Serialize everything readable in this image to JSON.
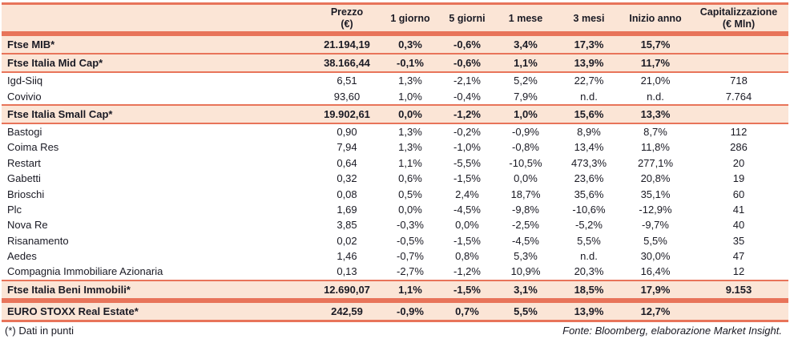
{
  "colors": {
    "accent_line": "#E8745A",
    "band_bg": "#FBE5D6",
    "text": "#1A1A24"
  },
  "table": {
    "headers": {
      "name": "",
      "prezzo_line1": "Prezzo",
      "prezzo_line2": "(€)",
      "d1": "1 giorno",
      "d5": "5 giorni",
      "m1": "1 mese",
      "m3": "3 mesi",
      "ytd": "Inizio anno",
      "cap_line1": "Capitalizzazione",
      "cap_line2": "(€ Mln)"
    },
    "rows": [
      {
        "name": "Ftse MIB*",
        "style": "index",
        "sep_after": "line",
        "cells": [
          "21.194,19",
          "0,3%",
          "-0,6%",
          "3,4%",
          "17,3%",
          "15,7%",
          ""
        ]
      },
      {
        "name": "Ftse Italia Mid Cap*",
        "style": "index",
        "sep_after": "line",
        "cells": [
          "38.166,44",
          "-0,1%",
          "-0,6%",
          "1,1%",
          "13,9%",
          "11,7%",
          ""
        ]
      },
      {
        "name": "Igd-Siiq",
        "style": "stock",
        "sep_after": "",
        "cells": [
          "6,51",
          "1,3%",
          "-2,1%",
          "5,2%",
          "22,7%",
          "21,0%",
          "718"
        ]
      },
      {
        "name": "Covivio",
        "style": "stock",
        "sep_after": "line",
        "cells": [
          "93,60",
          "1,0%",
          "-0,4%",
          "7,9%",
          "n.d.",
          "n.d.",
          "7.764"
        ]
      },
      {
        "name": "Ftse Italia Small Cap*",
        "style": "index",
        "sep_after": "line",
        "cells": [
          "19.902,61",
          "0,0%",
          "-1,2%",
          "1,0%",
          "15,6%",
          "13,3%",
          ""
        ]
      },
      {
        "name": "Bastogi",
        "style": "stock",
        "sep_after": "",
        "cells": [
          "0,90",
          "1,3%",
          "-0,2%",
          "-0,9%",
          "8,9%",
          "8,7%",
          "112"
        ]
      },
      {
        "name": "Coima Res",
        "style": "stock",
        "sep_after": "",
        "cells": [
          "7,94",
          "1,3%",
          "-1,0%",
          "-0,8%",
          "13,4%",
          "11,8%",
          "286"
        ]
      },
      {
        "name": "Restart",
        "style": "stock",
        "sep_after": "",
        "cells": [
          "0,64",
          "1,1%",
          "-5,5%",
          "-10,5%",
          "473,3%",
          "277,1%",
          "20"
        ]
      },
      {
        "name": "Gabetti",
        "style": "stock",
        "sep_after": "",
        "cells": [
          "0,32",
          "0,6%",
          "-1,5%",
          "0,0%",
          "23,6%",
          "20,8%",
          "19"
        ]
      },
      {
        "name": "Brioschi",
        "style": "stock",
        "sep_after": "",
        "cells": [
          "0,08",
          "0,5%",
          "2,4%",
          "18,7%",
          "35,6%",
          "35,1%",
          "60"
        ]
      },
      {
        "name": "Plc",
        "style": "stock",
        "sep_after": "",
        "cells": [
          "1,69",
          "0,0%",
          "-4,5%",
          "-9,8%",
          "-10,6%",
          "-12,9%",
          "41"
        ]
      },
      {
        "name": "Nova Re",
        "style": "stock",
        "sep_after": "",
        "cells": [
          "3,85",
          "-0,3%",
          "0,0%",
          "-2,5%",
          "-5,2%",
          "-9,7%",
          "40"
        ]
      },
      {
        "name": "Risanamento",
        "style": "stock",
        "sep_after": "",
        "cells": [
          "0,02",
          "-0,5%",
          "-1,5%",
          "-4,5%",
          "5,5%",
          "5,5%",
          "35"
        ]
      },
      {
        "name": "Aedes",
        "style": "stock",
        "sep_after": "",
        "cells": [
          "1,46",
          "-0,7%",
          "0,8%",
          "5,3%",
          "n.d.",
          "30,0%",
          "47"
        ]
      },
      {
        "name": "Compagnia Immobiliare Azionaria",
        "style": "stock",
        "sep_after": "line",
        "cells": [
          "0,13",
          "-2,7%",
          "-1,2%",
          "10,9%",
          "20,3%",
          "16,4%",
          "12"
        ]
      },
      {
        "name": "Ftse Italia Beni Immobili*",
        "style": "index",
        "sep_after": "gap",
        "cells": [
          "12.690,07",
          "1,1%",
          "-1,5%",
          "3,1%",
          "18,5%",
          "17,9%",
          "9.153"
        ]
      },
      {
        "name": "EURO STOXX Real Estate*",
        "style": "index",
        "sep_after": "",
        "cells": [
          "242,59",
          "-0,9%",
          "0,7%",
          "5,5%",
          "13,9%",
          "12,7%",
          ""
        ]
      }
    ]
  },
  "footer": {
    "note": "(*) Dati in punti",
    "source": "Fonte: Bloomberg, elaborazione Market Insight."
  }
}
